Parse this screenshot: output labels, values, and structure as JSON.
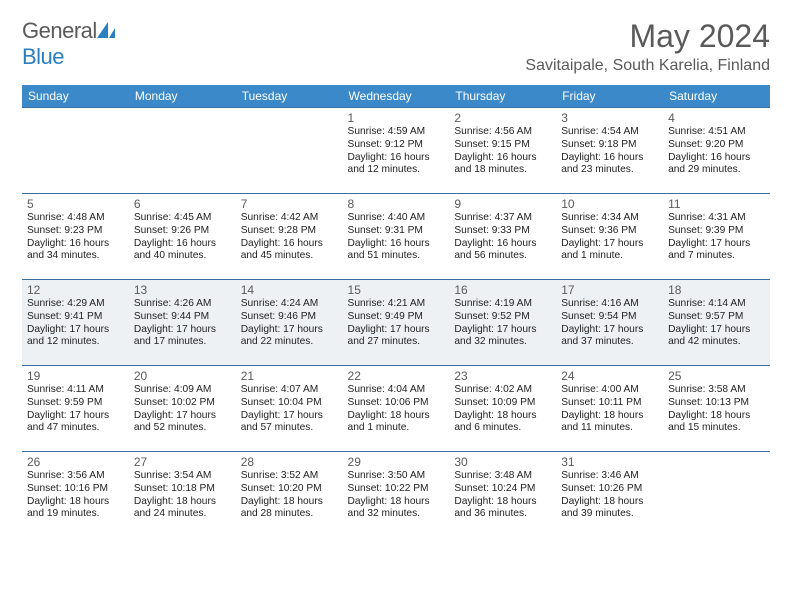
{
  "brand": {
    "name_part1": "General",
    "name_part2": "Blue"
  },
  "title": "May 2024",
  "location": "Savitaipale, South Karelia, Finland",
  "styling": {
    "page_bg": "#ffffff",
    "header_bar_color": "#3b89c9",
    "header_text_color": "#ffffff",
    "cell_border_color": "#3b6ea0",
    "shaded_row_bg": "#eef1f4",
    "text_color": "#222222",
    "muted_text_color": "#5a5a5a",
    "brand_blue": "#2a7fc0",
    "month_title_fontsize": 32,
    "location_fontsize": 16,
    "dayhead_fontsize": 12,
    "daynum_fontsize": 12,
    "body_fontsize": 10.2
  },
  "day_headers": [
    "Sunday",
    "Monday",
    "Tuesday",
    "Wednesday",
    "Thursday",
    "Friday",
    "Saturday"
  ],
  "weeks": [
    {
      "shaded": false,
      "days": [
        {
          "empty": true
        },
        {
          "empty": true
        },
        {
          "empty": true
        },
        {
          "num": "1",
          "sunrise": "Sunrise: 4:59 AM",
          "sunset": "Sunset: 9:12 PM",
          "dl1": "Daylight: 16 hours",
          "dl2": "and 12 minutes."
        },
        {
          "num": "2",
          "sunrise": "Sunrise: 4:56 AM",
          "sunset": "Sunset: 9:15 PM",
          "dl1": "Daylight: 16 hours",
          "dl2": "and 18 minutes."
        },
        {
          "num": "3",
          "sunrise": "Sunrise: 4:54 AM",
          "sunset": "Sunset: 9:18 PM",
          "dl1": "Daylight: 16 hours",
          "dl2": "and 23 minutes."
        },
        {
          "num": "4",
          "sunrise": "Sunrise: 4:51 AM",
          "sunset": "Sunset: 9:20 PM",
          "dl1": "Daylight: 16 hours",
          "dl2": "and 29 minutes."
        }
      ]
    },
    {
      "shaded": false,
      "days": [
        {
          "num": "5",
          "sunrise": "Sunrise: 4:48 AM",
          "sunset": "Sunset: 9:23 PM",
          "dl1": "Daylight: 16 hours",
          "dl2": "and 34 minutes."
        },
        {
          "num": "6",
          "sunrise": "Sunrise: 4:45 AM",
          "sunset": "Sunset: 9:26 PM",
          "dl1": "Daylight: 16 hours",
          "dl2": "and 40 minutes."
        },
        {
          "num": "7",
          "sunrise": "Sunrise: 4:42 AM",
          "sunset": "Sunset: 9:28 PM",
          "dl1": "Daylight: 16 hours",
          "dl2": "and 45 minutes."
        },
        {
          "num": "8",
          "sunrise": "Sunrise: 4:40 AM",
          "sunset": "Sunset: 9:31 PM",
          "dl1": "Daylight: 16 hours",
          "dl2": "and 51 minutes."
        },
        {
          "num": "9",
          "sunrise": "Sunrise: 4:37 AM",
          "sunset": "Sunset: 9:33 PM",
          "dl1": "Daylight: 16 hours",
          "dl2": "and 56 minutes."
        },
        {
          "num": "10",
          "sunrise": "Sunrise: 4:34 AM",
          "sunset": "Sunset: 9:36 PM",
          "dl1": "Daylight: 17 hours",
          "dl2": "and 1 minute."
        },
        {
          "num": "11",
          "sunrise": "Sunrise: 4:31 AM",
          "sunset": "Sunset: 9:39 PM",
          "dl1": "Daylight: 17 hours",
          "dl2": "and 7 minutes."
        }
      ]
    },
    {
      "shaded": true,
      "days": [
        {
          "num": "12",
          "sunrise": "Sunrise: 4:29 AM",
          "sunset": "Sunset: 9:41 PM",
          "dl1": "Daylight: 17 hours",
          "dl2": "and 12 minutes."
        },
        {
          "num": "13",
          "sunrise": "Sunrise: 4:26 AM",
          "sunset": "Sunset: 9:44 PM",
          "dl1": "Daylight: 17 hours",
          "dl2": "and 17 minutes."
        },
        {
          "num": "14",
          "sunrise": "Sunrise: 4:24 AM",
          "sunset": "Sunset: 9:46 PM",
          "dl1": "Daylight: 17 hours",
          "dl2": "and 22 minutes."
        },
        {
          "num": "15",
          "sunrise": "Sunrise: 4:21 AM",
          "sunset": "Sunset: 9:49 PM",
          "dl1": "Daylight: 17 hours",
          "dl2": "and 27 minutes."
        },
        {
          "num": "16",
          "sunrise": "Sunrise: 4:19 AM",
          "sunset": "Sunset: 9:52 PM",
          "dl1": "Daylight: 17 hours",
          "dl2": "and 32 minutes."
        },
        {
          "num": "17",
          "sunrise": "Sunrise: 4:16 AM",
          "sunset": "Sunset: 9:54 PM",
          "dl1": "Daylight: 17 hours",
          "dl2": "and 37 minutes."
        },
        {
          "num": "18",
          "sunrise": "Sunrise: 4:14 AM",
          "sunset": "Sunset: 9:57 PM",
          "dl1": "Daylight: 17 hours",
          "dl2": "and 42 minutes."
        }
      ]
    },
    {
      "shaded": false,
      "days": [
        {
          "num": "19",
          "sunrise": "Sunrise: 4:11 AM",
          "sunset": "Sunset: 9:59 PM",
          "dl1": "Daylight: 17 hours",
          "dl2": "and 47 minutes."
        },
        {
          "num": "20",
          "sunrise": "Sunrise: 4:09 AM",
          "sunset": "Sunset: 10:02 PM",
          "dl1": "Daylight: 17 hours",
          "dl2": "and 52 minutes."
        },
        {
          "num": "21",
          "sunrise": "Sunrise: 4:07 AM",
          "sunset": "Sunset: 10:04 PM",
          "dl1": "Daylight: 17 hours",
          "dl2": "and 57 minutes."
        },
        {
          "num": "22",
          "sunrise": "Sunrise: 4:04 AM",
          "sunset": "Sunset: 10:06 PM",
          "dl1": "Daylight: 18 hours",
          "dl2": "and 1 minute."
        },
        {
          "num": "23",
          "sunrise": "Sunrise: 4:02 AM",
          "sunset": "Sunset: 10:09 PM",
          "dl1": "Daylight: 18 hours",
          "dl2": "and 6 minutes."
        },
        {
          "num": "24",
          "sunrise": "Sunrise: 4:00 AM",
          "sunset": "Sunset: 10:11 PM",
          "dl1": "Daylight: 18 hours",
          "dl2": "and 11 minutes."
        },
        {
          "num": "25",
          "sunrise": "Sunrise: 3:58 AM",
          "sunset": "Sunset: 10:13 PM",
          "dl1": "Daylight: 18 hours",
          "dl2": "and 15 minutes."
        }
      ]
    },
    {
      "shaded": false,
      "days": [
        {
          "num": "26",
          "sunrise": "Sunrise: 3:56 AM",
          "sunset": "Sunset: 10:16 PM",
          "dl1": "Daylight: 18 hours",
          "dl2": "and 19 minutes."
        },
        {
          "num": "27",
          "sunrise": "Sunrise: 3:54 AM",
          "sunset": "Sunset: 10:18 PM",
          "dl1": "Daylight: 18 hours",
          "dl2": "and 24 minutes."
        },
        {
          "num": "28",
          "sunrise": "Sunrise: 3:52 AM",
          "sunset": "Sunset: 10:20 PM",
          "dl1": "Daylight: 18 hours",
          "dl2": "and 28 minutes."
        },
        {
          "num": "29",
          "sunrise": "Sunrise: 3:50 AM",
          "sunset": "Sunset: 10:22 PM",
          "dl1": "Daylight: 18 hours",
          "dl2": "and 32 minutes."
        },
        {
          "num": "30",
          "sunrise": "Sunrise: 3:48 AM",
          "sunset": "Sunset: 10:24 PM",
          "dl1": "Daylight: 18 hours",
          "dl2": "and 36 minutes."
        },
        {
          "num": "31",
          "sunrise": "Sunrise: 3:46 AM",
          "sunset": "Sunset: 10:26 PM",
          "dl1": "Daylight: 18 hours",
          "dl2": "and 39 minutes."
        },
        {
          "empty": true
        }
      ]
    }
  ]
}
